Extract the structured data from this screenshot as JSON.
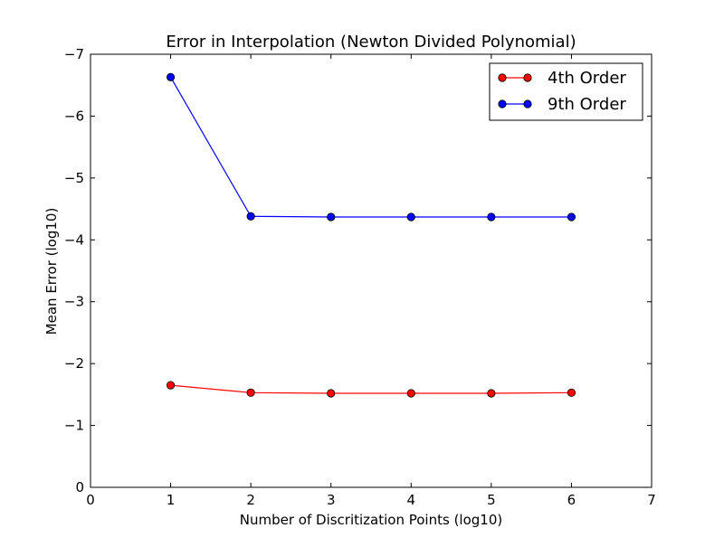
{
  "chart_data": {
    "type": "line",
    "title": "Error in Interpolation (Newton Divided Polynomial)",
    "xlabel": "Number of Discritization Points (log10)",
    "ylabel": "Mean Error (log10)",
    "xlim": [
      0,
      7
    ],
    "ylim": [
      0,
      -7
    ],
    "y_axis_inverted": true,
    "x_ticks": [
      "0",
      "1",
      "2",
      "3",
      "4",
      "5",
      "6",
      "7"
    ],
    "y_ticks": [
      "0",
      "−1",
      "−2",
      "−3",
      "−4",
      "−5",
      "−6",
      "−7"
    ],
    "x": [
      1,
      2,
      3,
      4,
      5,
      6
    ],
    "series": [
      {
        "name": "4th Order",
        "color": "#ff0000",
        "values": [
          -1.65,
          -1.53,
          -1.52,
          -1.52,
          -1.52,
          -1.53
        ]
      },
      {
        "name": "9th Order",
        "color": "#0000ff",
        "values": [
          -6.63,
          -4.38,
          -4.37,
          -4.37,
          -4.37,
          -4.37
        ]
      }
    ],
    "legend_position": "top-right",
    "grid": false
  }
}
